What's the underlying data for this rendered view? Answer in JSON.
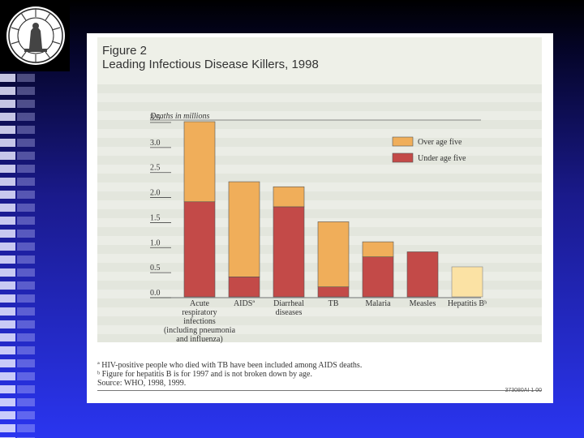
{
  "chart_data": {
    "type": "bar",
    "title_line1": "Figure 2",
    "title_line2": "Leading Infectious Disease Killers, 1998",
    "ylabel": "Deaths in millions",
    "ylim": [
      0,
      3.5
    ],
    "yticks": [
      "0.0",
      "0.5",
      "1.0",
      "1.5",
      "2.0",
      "2.5",
      "3.0",
      "3.5"
    ],
    "ytick_values": [
      0,
      0.5,
      1.0,
      1.5,
      2.0,
      2.5,
      3.0,
      3.5
    ],
    "categories": [
      [
        "Acute",
        "respiratory",
        "infections",
        "(including pneumonia",
        "and influenza)"
      ],
      [
        "AIDSª"
      ],
      [
        "Diarrheal",
        "diseases"
      ],
      [
        "TB"
      ],
      [
        "Malaria"
      ],
      [
        "Measles"
      ],
      [
        "Hepatitis Bᵇ"
      ]
    ],
    "series": [
      {
        "name": "Under age five",
        "color": "#c34a48",
        "values": [
          1.9,
          0.4,
          1.8,
          0.2,
          0.8,
          0.9,
          null
        ]
      },
      {
        "name": "Over age five",
        "color": "#f0ae5a",
        "values": [
          1.6,
          1.9,
          0.4,
          1.3,
          0.3,
          null,
          null
        ]
      }
    ],
    "unsplit": {
      "name": "Hepatitis B (not broken down by age)",
      "color": "#fbe2a4",
      "values": [
        null,
        null,
        null,
        null,
        null,
        null,
        0.6
      ]
    },
    "legend": [
      "Over age five",
      "Under age five"
    ],
    "legend_position": "top-right"
  },
  "footnotes": {
    "a": "ª HIV-positive people who died with TB have been included among AIDS deaths.",
    "b": "ᵇ Figure for hepatitis B is for 1997 and is not broken down by age.",
    "source": "Source: WHO, 1998, 1999."
  },
  "code": "373080AI 1 00",
  "colors": {
    "accent_over": "#f0ae5a",
    "accent_under": "#c34a48",
    "hepatitis": "#fbe2a4"
  },
  "logo_icon": "university-seal-icon"
}
